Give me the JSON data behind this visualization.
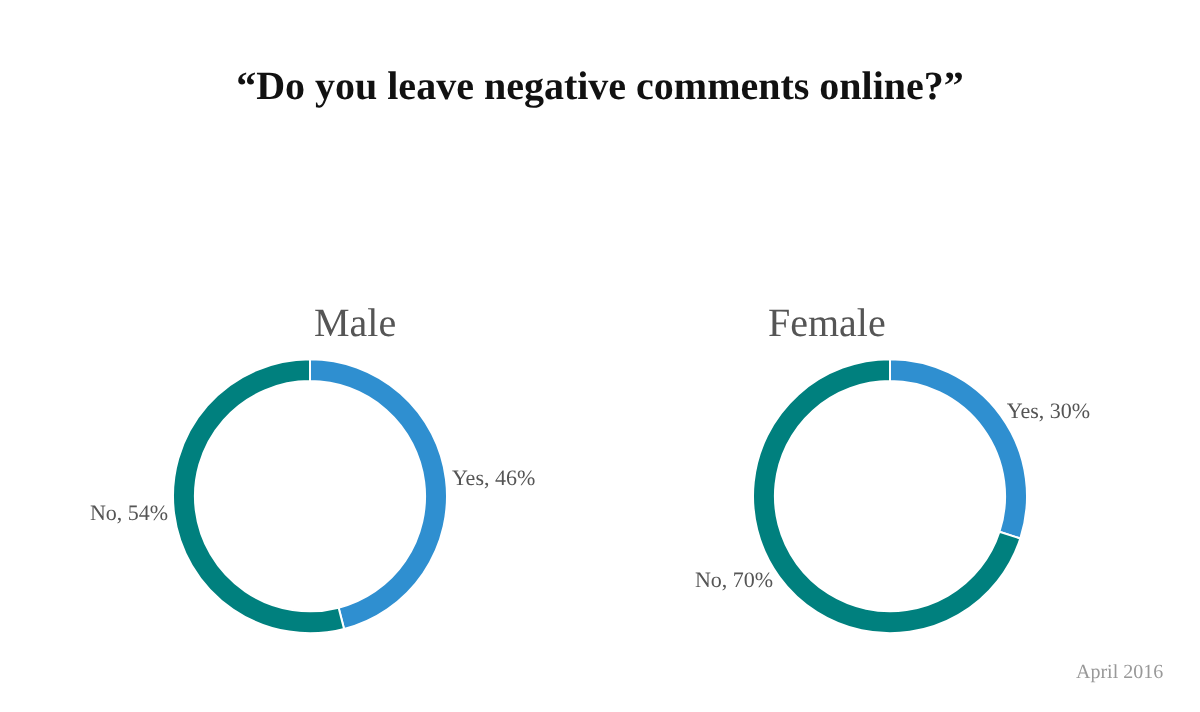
{
  "chart_data": [
    {
      "type": "donut",
      "title": "“Do you leave negative comments online?”",
      "subtitle": "Male",
      "categories": [
        "Yes",
        "No"
      ],
      "values": [
        46,
        54
      ],
      "colors": [
        "#2f8fd0",
        "#00807e"
      ],
      "value_labels": [
        "46%",
        "54%"
      ],
      "legend": false
    },
    {
      "type": "donut",
      "subtitle": "Female",
      "categories": [
        "Yes",
        "No"
      ],
      "values": [
        30,
        70
      ],
      "colors": [
        "#2f8fd0",
        "#00807e"
      ],
      "value_labels": [
        "30%",
        "70%"
      ],
      "legend": false,
      "annotations": [
        "April 2016"
      ]
    }
  ]
}
